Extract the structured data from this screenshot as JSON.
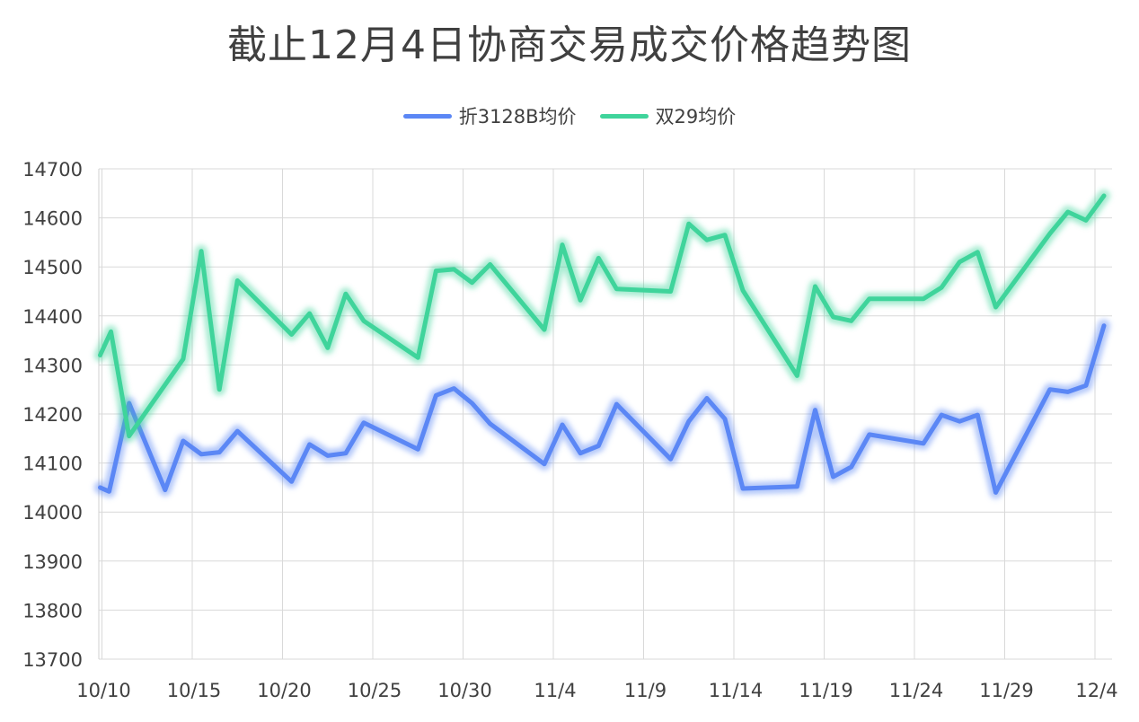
{
  "chart_data": {
    "type": "line",
    "title": "截止12月4日协商交易成交价格趋势图",
    "xlabel": "",
    "ylabel": "",
    "ylim": [
      13700,
      14700
    ],
    "yticks": [
      13700,
      13800,
      13900,
      14000,
      14100,
      14200,
      14300,
      14400,
      14500,
      14600,
      14700
    ],
    "xlim_days": [
      0,
      55
    ],
    "xticks": [
      {
        "label": "10/10",
        "day": 0
      },
      {
        "label": "10/15",
        "day": 5
      },
      {
        "label": "10/20",
        "day": 10
      },
      {
        "label": "10/25",
        "day": 15
      },
      {
        "label": "10/30",
        "day": 20
      },
      {
        "label": "11/4",
        "day": 25
      },
      {
        "label": "11/9",
        "day": 30
      },
      {
        "label": "11/14",
        "day": 35
      },
      {
        "label": "11/19",
        "day": 40
      },
      {
        "label": "11/24",
        "day": 45
      },
      {
        "label": "11/29",
        "day": 50
      },
      {
        "label": "12/4",
        "day": 55
      }
    ],
    "grid": true,
    "legend_position": "top-center",
    "series": [
      {
        "name": "折3128B均价",
        "color": "#5b87f5",
        "x": [
          -0.1,
          0.4,
          1.5,
          3.5,
          4.5,
          5.5,
          6.5,
          7.5,
          10.5,
          11.5,
          12.5,
          13.5,
          14.5,
          17.5,
          18.5,
          19.5,
          20.5,
          21.5,
          24.5,
          25.5,
          26.5,
          27.5,
          28.5,
          31.5,
          32.5,
          33.5,
          34.5,
          35.5,
          38.5,
          39.5,
          40.5,
          41.5,
          42.5,
          45.5,
          46.5,
          47.5,
          48.5,
          49.5,
          52.5,
          53.5,
          54.5,
          55.5
        ],
        "values": [
          14050,
          14042,
          14222,
          14045,
          14145,
          14118,
          14122,
          14165,
          14062,
          14138,
          14115,
          14120,
          14182,
          14128,
          14238,
          14252,
          14222,
          14180,
          14098,
          14178,
          14120,
          14135,
          14220,
          14108,
          14185,
          14232,
          14190,
          14048,
          14052,
          14208,
          14072,
          14092,
          14158,
          14140,
          14198,
          14185,
          14198,
          14040,
          14250,
          14245,
          14258,
          14380
        ]
      },
      {
        "name": "双29均价",
        "color": "#3fd49b",
        "x": [
          -0.1,
          0.5,
          1.5,
          4.5,
          5.5,
          6.5,
          7.5,
          10.5,
          11.5,
          12.5,
          13.5,
          14.5,
          17.5,
          18.5,
          19.5,
          20.5,
          21.5,
          24.5,
          25.5,
          26.5,
          27.5,
          28.5,
          31.5,
          32.5,
          33.5,
          34.5,
          35.5,
          38.5,
          39.5,
          40.5,
          41.5,
          42.5,
          45.5,
          46.5,
          47.5,
          48.5,
          49.5,
          52.5,
          53.5,
          54.5,
          55.5
        ],
        "values": [
          14320,
          14368,
          14155,
          14312,
          14532,
          14250,
          14472,
          14362,
          14405,
          14335,
          14445,
          14390,
          14315,
          14492,
          14495,
          14468,
          14505,
          14372,
          14545,
          14432,
          14518,
          14455,
          14450,
          14588,
          14555,
          14565,
          14452,
          14278,
          14460,
          14398,
          14390,
          14435,
          14435,
          14458,
          14510,
          14530,
          14418,
          14568,
          14612,
          14595,
          14645
        ]
      }
    ]
  }
}
